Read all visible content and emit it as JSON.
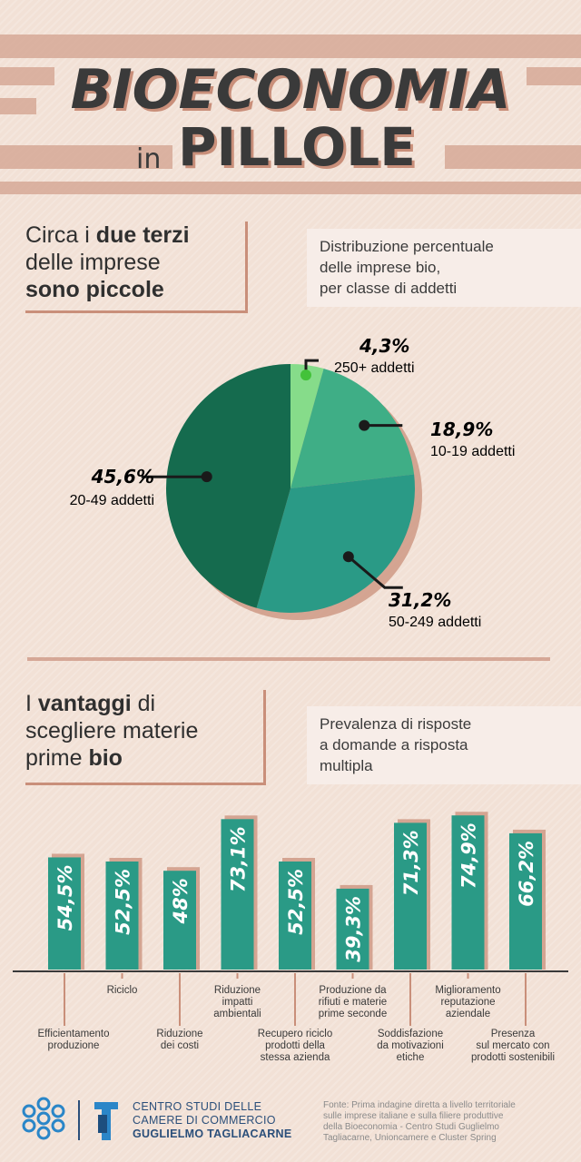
{
  "title": {
    "main": "BIOECONOMIA",
    "in": "in",
    "sub": "PILLOLE"
  },
  "section1": {
    "heading": [
      "Circa i ",
      "due terzi",
      "delle imprese",
      "sono piccole"
    ],
    "description": [
      "Distribuzione percentuale",
      "delle imprese bio,",
      "per classe di addetti"
    ]
  },
  "section2": {
    "heading": [
      "I ",
      "vantaggi",
      " di",
      "scegliere materie",
      "prime ",
      "bio"
    ],
    "description": [
      "Prevalenza di risposte",
      "a domande a risposta",
      "multipla"
    ]
  },
  "footer": {
    "org_lines": [
      "CENTRO STUDI DELLE",
      "CAMERE DI COMMERCIO",
      "GUGLIELMO TAGLIACARNE"
    ],
    "source_lines": [
      "Fonte: Prima indagine diretta a livello territoriale",
      "sulle imprese italiane e sulla filiere produttive",
      "della Bioeconomia - Centro Studi Guglielmo",
      "Tagliacarne, Unioncamere e Cluster Spring"
    ]
  },
  "colors": {
    "dark_green": "#156b4e",
    "teal": "#2a9a86",
    "mid_green": "#3fae86",
    "light_green": "#86dc8a",
    "accent": "#c98f7a"
  },
  "chart_data": [
    {
      "type": "pie",
      "slices": [
        {
          "label": "250+  addetti",
          "value": 4.3,
          "value_label": "4,3%",
          "color": "#86dc8a"
        },
        {
          "label": "10-19 addetti",
          "value": 18.9,
          "value_label": "18,9%",
          "color": "#3fae86"
        },
        {
          "label": "50-249 addetti",
          "value": 31.2,
          "value_label": "31,2%",
          "color": "#2a9a86"
        },
        {
          "label": "20-49 addetti",
          "value": 45.6,
          "value_label": "45,6%",
          "color": "#156b4e"
        }
      ]
    },
    {
      "type": "bar",
      "categories": [
        "Efficientamento produzione",
        "Riciclo",
        "Riduzione dei costi",
        "Riduzione impatti ambientali",
        "Recupero riciclo prodotti della stessa azienda",
        "Produzione da rifiuti e materie prime seconde",
        "Soddisfazione da motivazioni etiche",
        "Miglioramento reputazione aziendale",
        "Presenza sul mercato con prodotti sostenibili"
      ],
      "values": [
        54.5,
        52.5,
        48,
        73.1,
        52.5,
        39.3,
        71.3,
        74.9,
        66.2
      ],
      "value_labels": [
        "54,5%",
        "52,5%",
        "48%",
        "73,1%",
        "52,5%",
        "39,3%",
        "71,3%",
        "74,9%",
        "66,2%"
      ],
      "category_lines": [
        [
          "Efficientamento",
          "produzione"
        ],
        [
          "Riciclo"
        ],
        [
          "Riduzione",
          "dei costi"
        ],
        [
          "Riduzione",
          "impatti",
          "ambientali"
        ],
        [
          "Recupero riciclo",
          "prodotti della",
          "stessa azienda"
        ],
        [
          "Produzione da",
          "rifiuti e materie",
          "prime seconde"
        ],
        [
          "Soddisfazione",
          "da motivazioni",
          "etiche"
        ],
        [
          "Miglioramento",
          "reputazione",
          "aziendale"
        ],
        [
          "Presenza",
          "sul mercato con",
          "prodotti sostenibili"
        ]
      ],
      "color": "#2a9a86"
    }
  ]
}
